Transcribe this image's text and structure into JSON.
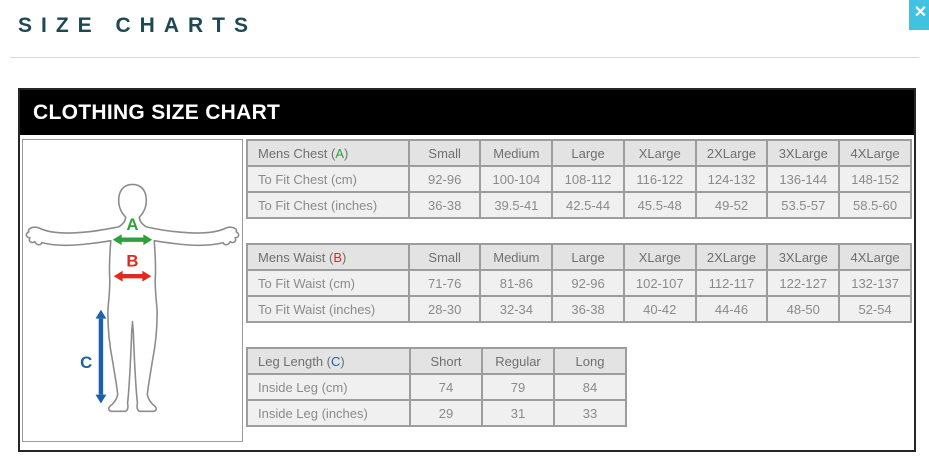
{
  "page": {
    "title": "SIZE CHARTS",
    "close_glyph": "✕"
  },
  "panel": {
    "header": "CLOTHING SIZE CHART"
  },
  "diagram": {
    "measures": [
      {
        "letter": "A",
        "meaning": "chest-width",
        "color": "#2fa13c"
      },
      {
        "letter": "B",
        "meaning": "waist-width",
        "color": "#e02a1f"
      },
      {
        "letter": "C",
        "meaning": "inside-leg-length",
        "color": "#1c60ac"
      }
    ]
  },
  "chart_data": [
    {
      "type": "table",
      "name": "mens-chest-size-table",
      "title": "Mens Chest (A)",
      "title_prefix": "Mens Chest (",
      "letter": "A",
      "letter_color": "#2fa13c",
      "title_suffix": ")",
      "categories": [
        "Small",
        "Medium",
        "Large",
        "XLarge",
        "2XLarge",
        "3XLarge",
        "4XLarge"
      ],
      "rows": [
        {
          "label": "To Fit Chest (cm)",
          "values": [
            "92-96",
            "100-104",
            "108-112",
            "116-122",
            "124-132",
            "136-144",
            "148-152"
          ]
        },
        {
          "label": "To Fit Chest (inches)",
          "values": [
            "36-38",
            "39.5-41",
            "42.5-44",
            "45.5-48",
            "49-52",
            "53.5-57",
            "58.5-60"
          ]
        }
      ]
    },
    {
      "type": "table",
      "name": "mens-waist-size-table",
      "title": "Mens Waist (B)",
      "title_prefix": "Mens Waist (",
      "letter": "B",
      "letter_color": "#e02a1f",
      "title_suffix": ")",
      "categories": [
        "Small",
        "Medium",
        "Large",
        "XLarge",
        "2XLarge",
        "3XLarge",
        "4XLarge"
      ],
      "rows": [
        {
          "label": "To Fit Waist (cm)",
          "values": [
            "71-76",
            "81-86",
            "92-96",
            "102-107",
            "112-117",
            "122-127",
            "132-137"
          ]
        },
        {
          "label": "To Fit Waist (inches)",
          "values": [
            "28-30",
            "32-34",
            "36-38",
            "40-42",
            "44-46",
            "48-50",
            "52-54"
          ]
        }
      ]
    },
    {
      "type": "table",
      "name": "leg-length-size-table",
      "title": "Leg Length (C)",
      "title_prefix": "Leg Length (",
      "letter": "C",
      "letter_color": "#1c60ac",
      "title_suffix": ")",
      "categories": [
        "Short",
        "Regular",
        "Long"
      ],
      "rows": [
        {
          "label": "Inside Leg (cm)",
          "values": [
            "74",
            "79",
            "84"
          ]
        },
        {
          "label": "Inside Leg (inches)",
          "values": [
            "29",
            "31",
            "33"
          ]
        }
      ]
    }
  ],
  "colors": {
    "title": "#1e4852",
    "panel_header_bg": "#000000",
    "close_button_bg": "#41c2e0",
    "header_cell_bg": "#e3e3e3",
    "data_cell_bg": "#f0f0f0",
    "cell_border": "#9d9d9d",
    "table_text": "#8a8a8a",
    "figure_outline": "#8c8c8c"
  }
}
